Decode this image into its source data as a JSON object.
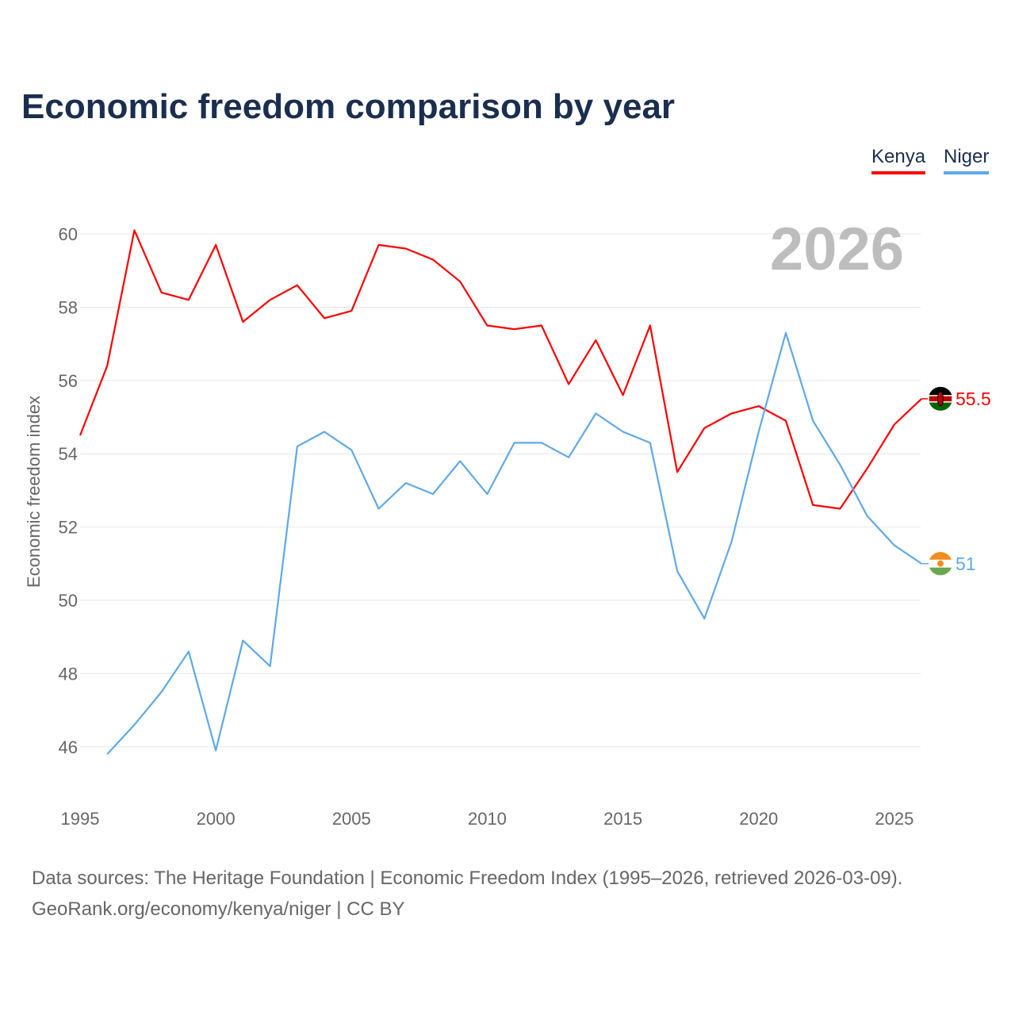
{
  "title": "Economic freedom comparison by year",
  "footer": {
    "line1": "Data sources: The Heritage Foundation | Economic Freedom Index (1995–2026, retrieved 2026-03-09).",
    "line2": "GeoRank.org/economy/kenya/niger | CC BY"
  },
  "chart_data": {
    "type": "line",
    "title": "Economic freedom comparison by year",
    "xlabel": "",
    "ylabel": "Economic freedom index",
    "year_label": "2026",
    "ylim": [
      44.5,
      61
    ],
    "xlim": [
      1995,
      2026
    ],
    "yticks": [
      "46",
      "48",
      "50",
      "52",
      "54",
      "56",
      "58",
      "60"
    ],
    "xticks": [
      "1995",
      "2000",
      "2005",
      "2010",
      "2015",
      "2020",
      "2025"
    ],
    "grid": true,
    "legend_position": "top-right",
    "series": [
      {
        "name": "Kenya",
        "color": "#ff0000",
        "end_label": "55.5",
        "x": [
          1995,
          1996,
          1997,
          1998,
          1999,
          2000,
          2001,
          2002,
          2003,
          2004,
          2005,
          2006,
          2007,
          2008,
          2009,
          2010,
          2011,
          2012,
          2013,
          2014,
          2015,
          2016,
          2017,
          2018,
          2019,
          2020,
          2021,
          2022,
          2023,
          2024,
          2025,
          2026
        ],
        "values": [
          54.5,
          56.4,
          60.1,
          58.4,
          58.2,
          59.7,
          57.6,
          58.2,
          58.6,
          57.7,
          57.9,
          59.7,
          59.6,
          59.3,
          58.7,
          57.5,
          57.4,
          57.5,
          55.9,
          57.1,
          55.6,
          57.5,
          53.5,
          54.7,
          55.1,
          55.3,
          54.9,
          52.6,
          52.5,
          53.6,
          54.8,
          55.5
        ]
      },
      {
        "name": "Niger",
        "color": "#5fa8e8",
        "end_label": "51",
        "x": [
          1996,
          1997,
          1998,
          1999,
          2000,
          2001,
          2002,
          2003,
          2004,
          2005,
          2006,
          2007,
          2008,
          2009,
          2010,
          2011,
          2012,
          2013,
          2014,
          2015,
          2016,
          2017,
          2018,
          2019,
          2020,
          2021,
          2022,
          2023,
          2024,
          2025,
          2026
        ],
        "values": [
          45.8,
          46.6,
          47.5,
          48.6,
          45.9,
          48.9,
          48.2,
          54.2,
          54.6,
          54.1,
          52.5,
          53.2,
          52.9,
          53.8,
          52.9,
          54.3,
          54.3,
          53.9,
          55.1,
          54.6,
          54.3,
          50.8,
          49.5,
          51.6,
          54.6,
          57.3,
          54.9,
          53.7,
          52.3,
          51.5,
          51.0
        ]
      }
    ]
  }
}
